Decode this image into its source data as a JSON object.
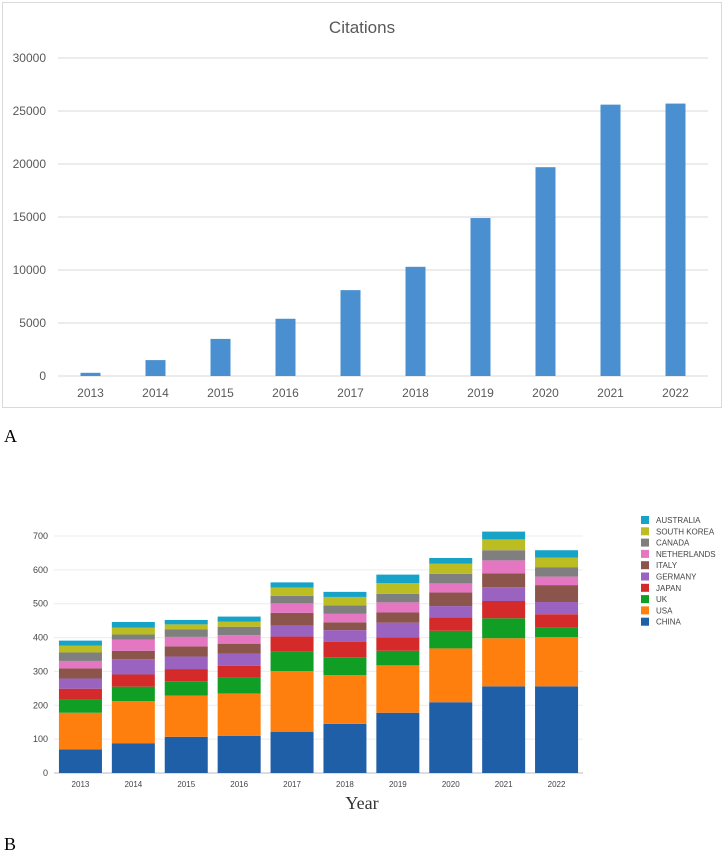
{
  "panels": {
    "a_label": "A",
    "b_label": "B"
  },
  "chart_data": [
    {
      "type": "bar",
      "title": "Citations",
      "categories": [
        "2013",
        "2014",
        "2015",
        "2016",
        "2017",
        "2018",
        "2019",
        "2020",
        "2021",
        "2022"
      ],
      "values": [
        300,
        1500,
        3500,
        5400,
        8100,
        10300,
        14900,
        19700,
        25600,
        25700
      ],
      "ylim": [
        0,
        30000
      ],
      "yticks": [
        0,
        5000,
        10000,
        15000,
        20000,
        25000,
        30000
      ],
      "ytick_labels": [
        "0",
        "5000",
        "10000",
        "15000",
        "20000",
        "25000",
        "30000"
      ],
      "grid": true,
      "color": "#4a90d0"
    },
    {
      "type": "bar",
      "stacked": true,
      "title": "",
      "xlabel": "Year",
      "categories": [
        "2013",
        "2014",
        "2015",
        "2016",
        "2017",
        "2018",
        "2019",
        "2020",
        "2021",
        "2022"
      ],
      "ylim": [
        0,
        700
      ],
      "yticks": [
        0,
        100,
        200,
        300,
        400,
        500,
        600,
        700
      ],
      "ytick_labels": [
        "0",
        "100",
        "200",
        "300",
        "400",
        "500",
        "600",
        "700"
      ],
      "legend_position": "right",
      "series": [
        {
          "name": "CHINA",
          "color": "#1f5fa8",
          "values": [
            70,
            88,
            107,
            110,
            122,
            145,
            178,
            209,
            256,
            256
          ]
        },
        {
          "name": "USA",
          "color": "#ff7f0e",
          "values": [
            108,
            124,
            122,
            125,
            179,
            144,
            140,
            159,
            142,
            145
          ]
        },
        {
          "name": "UK",
          "color": "#119e24",
          "values": [
            38,
            43,
            42,
            46,
            59,
            53,
            43,
            52,
            59,
            30
          ]
        },
        {
          "name": "JAPAN",
          "color": "#d52a2a",
          "values": [
            33,
            36,
            36,
            36,
            43,
            45,
            40,
            40,
            51,
            38
          ]
        },
        {
          "name": "GERMANY",
          "color": "#9a63c0",
          "values": [
            30,
            45,
            37,
            35,
            32,
            35,
            43,
            33,
            41,
            36
          ]
        },
        {
          "name": "ITALY",
          "color": "#8c554b",
          "values": [
            30,
            25,
            30,
            30,
            38,
            23,
            30,
            40,
            41,
            50
          ]
        },
        {
          "name": "NETHERLANDS",
          "color": "#e476c2",
          "values": [
            22,
            33,
            28,
            25,
            28,
            25,
            30,
            27,
            38,
            25
          ]
        },
        {
          "name": "CANADA",
          "color": "#7f7f7f",
          "values": [
            25,
            15,
            22,
            25,
            22,
            25,
            25,
            28,
            30,
            28
          ]
        },
        {
          "name": "SOUTH KOREA",
          "color": "#bcbd22",
          "values": [
            20,
            20,
            15,
            15,
            25,
            25,
            32,
            30,
            32,
            28
          ]
        },
        {
          "name": "AUSTRALIA",
          "color": "#17a3c8",
          "values": [
            15,
            17,
            13,
            15,
            15,
            15,
            25,
            17,
            23,
            22
          ]
        }
      ]
    }
  ]
}
